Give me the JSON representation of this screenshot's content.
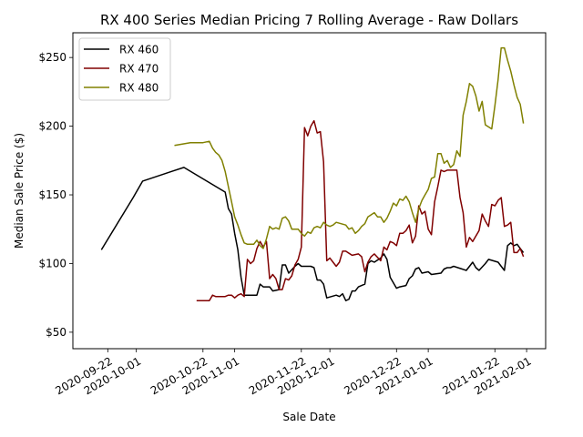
{
  "chart_data": {
    "type": "line",
    "title": "RX 400 Series Median Pricing 7 Rolling Average - Raw Dollars",
    "xlabel": "Sale Date",
    "ylabel": "Median Sale Price ($)",
    "xlim": [
      "2020-09-11",
      "2021-02-07"
    ],
    "ylim": [
      38,
      268
    ],
    "x_ticks": [
      "2020-09-22",
      "2020-10-01",
      "2020-10-22",
      "2020-11-01",
      "2020-11-22",
      "2020-12-01",
      "2020-12-22",
      "2021-01-01",
      "2021-01-22",
      "2021-02-01"
    ],
    "y_ticks": [
      50,
      100,
      150,
      200,
      250
    ],
    "y_tick_labels": [
      "$50",
      "$100",
      "$150",
      "$200",
      "$250"
    ],
    "grid": false,
    "legend": "top-left",
    "series": [
      {
        "name": "RX 460",
        "color": "#000000",
        "points": [
          [
            "2020-09-20",
            110
          ],
          [
            "2020-09-30",
            148
          ],
          [
            "2020-10-03",
            160
          ],
          [
            "2020-10-12",
            167
          ],
          [
            "2020-10-16",
            170
          ],
          [
            "2020-10-29",
            152
          ],
          [
            "2020-10-30",
            140
          ],
          [
            "2020-10-31",
            136
          ],
          [
            "2020-11-01",
            122
          ],
          [
            "2020-11-02",
            110
          ],
          [
            "2020-11-03",
            90
          ],
          [
            "2020-11-04",
            77
          ],
          [
            "2020-11-08",
            77
          ],
          [
            "2020-11-09",
            85
          ],
          [
            "2020-11-10",
            83
          ],
          [
            "2020-11-12",
            83
          ],
          [
            "2020-11-13",
            80
          ],
          [
            "2020-11-15",
            81
          ],
          [
            "2020-11-16",
            99
          ],
          [
            "2020-11-17",
            99
          ],
          [
            "2020-11-18",
            93
          ],
          [
            "2020-11-20",
            98
          ],
          [
            "2020-11-21",
            100
          ],
          [
            "2020-11-22",
            98
          ],
          [
            "2020-11-25",
            98
          ],
          [
            "2020-11-26",
            97
          ],
          [
            "2020-11-27",
            88
          ],
          [
            "2020-11-28",
            88
          ],
          [
            "2020-11-29",
            85
          ],
          [
            "2020-11-30",
            75
          ],
          [
            "2020-12-03",
            77
          ],
          [
            "2020-12-04",
            76
          ],
          [
            "2020-12-05",
            78
          ],
          [
            "2020-12-06",
            73
          ],
          [
            "2020-12-07",
            74
          ],
          [
            "2020-12-08",
            80
          ],
          [
            "2020-12-09",
            80
          ],
          [
            "2020-12-10",
            83
          ],
          [
            "2020-12-12",
            85
          ],
          [
            "2020-12-13",
            100
          ],
          [
            "2020-12-14",
            102
          ],
          [
            "2020-12-15",
            101
          ],
          [
            "2020-12-17",
            104
          ],
          [
            "2020-12-18",
            107
          ],
          [
            "2020-12-19",
            103
          ],
          [
            "2020-12-20",
            90
          ],
          [
            "2020-12-22",
            82
          ],
          [
            "2020-12-23",
            83
          ],
          [
            "2020-12-25",
            84
          ],
          [
            "2020-12-26",
            89
          ],
          [
            "2020-12-27",
            91
          ],
          [
            "2020-12-28",
            96
          ],
          [
            "2020-12-29",
            97
          ],
          [
            "2020-12-30",
            93
          ],
          [
            "2021-01-01",
            94
          ],
          [
            "2021-01-02",
            92
          ],
          [
            "2021-01-05",
            93
          ],
          [
            "2021-01-06",
            96
          ],
          [
            "2021-01-07",
            97
          ],
          [
            "2021-01-08",
            97
          ],
          [
            "2021-01-09",
            98
          ],
          [
            "2021-01-13",
            95
          ],
          [
            "2021-01-15",
            101
          ],
          [
            "2021-01-16",
            97
          ],
          [
            "2021-01-17",
            95
          ],
          [
            "2021-01-19",
            100
          ],
          [
            "2021-01-20",
            103
          ],
          [
            "2021-01-23",
            101
          ],
          [
            "2021-01-24",
            98
          ],
          [
            "2021-01-25",
            95
          ],
          [
            "2021-01-26",
            113
          ],
          [
            "2021-01-27",
            115
          ],
          [
            "2021-01-28",
            113
          ],
          [
            "2021-01-29",
            114
          ],
          [
            "2021-01-30",
            111
          ],
          [
            "2021-01-31",
            108
          ]
        ]
      },
      {
        "name": "RX 470",
        "color": "#800000",
        "points": [
          [
            "2020-10-20",
            73
          ],
          [
            "2020-10-24",
            73
          ],
          [
            "2020-10-25",
            77
          ],
          [
            "2020-10-26",
            76
          ],
          [
            "2020-10-29",
            76
          ],
          [
            "2020-10-30",
            77
          ],
          [
            "2020-10-31",
            77
          ],
          [
            "2020-11-01",
            75
          ],
          [
            "2020-11-02",
            77
          ],
          [
            "2020-11-03",
            78
          ],
          [
            "2020-11-04",
            76
          ],
          [
            "2020-11-05",
            103
          ],
          [
            "2020-11-06",
            100
          ],
          [
            "2020-11-07",
            102
          ],
          [
            "2020-11-08",
            111
          ],
          [
            "2020-11-09",
            116
          ],
          [
            "2020-11-10",
            112
          ],
          [
            "2020-11-11",
            116
          ],
          [
            "2020-11-12",
            89
          ],
          [
            "2020-11-13",
            92
          ],
          [
            "2020-11-14",
            89
          ],
          [
            "2020-11-15",
            81
          ],
          [
            "2020-11-16",
            81
          ],
          [
            "2020-11-17",
            89
          ],
          [
            "2020-11-18",
            88
          ],
          [
            "2020-11-19",
            91
          ],
          [
            "2020-11-20",
            99
          ],
          [
            "2020-11-21",
            103
          ],
          [
            "2020-11-22",
            112
          ],
          [
            "2020-11-23",
            199
          ],
          [
            "2020-11-24",
            193
          ],
          [
            "2020-11-25",
            200
          ],
          [
            "2020-11-26",
            204
          ],
          [
            "2020-11-27",
            195
          ],
          [
            "2020-11-28",
            196
          ],
          [
            "2020-11-29",
            174
          ],
          [
            "2020-11-30",
            102
          ],
          [
            "2020-12-01",
            104
          ],
          [
            "2020-12-02",
            101
          ],
          [
            "2020-12-03",
            98
          ],
          [
            "2020-12-04",
            101
          ],
          [
            "2020-12-05",
            109
          ],
          [
            "2020-12-06",
            109
          ],
          [
            "2020-12-08",
            106
          ],
          [
            "2020-12-10",
            107
          ],
          [
            "2020-12-11",
            105
          ],
          [
            "2020-12-12",
            94
          ],
          [
            "2020-12-13",
            101
          ],
          [
            "2020-12-14",
            105
          ],
          [
            "2020-12-15",
            107
          ],
          [
            "2020-12-17",
            102
          ],
          [
            "2020-12-18",
            112
          ],
          [
            "2020-12-19",
            110
          ],
          [
            "2020-12-20",
            116
          ],
          [
            "2020-12-21",
            115
          ],
          [
            "2020-12-22",
            113
          ],
          [
            "2020-12-23",
            122
          ],
          [
            "2020-12-24",
            122
          ],
          [
            "2020-12-25",
            124
          ],
          [
            "2020-12-26",
            128
          ],
          [
            "2020-12-27",
            115
          ],
          [
            "2020-12-28",
            120
          ],
          [
            "2020-12-29",
            142
          ],
          [
            "2020-12-30",
            136
          ],
          [
            "2020-12-31",
            138
          ],
          [
            "2021-01-01",
            125
          ],
          [
            "2021-01-02",
            121
          ],
          [
            "2021-01-03",
            145
          ],
          [
            "2021-01-04",
            156
          ],
          [
            "2021-01-05",
            168
          ],
          [
            "2021-01-06",
            167
          ],
          [
            "2021-01-07",
            168
          ],
          [
            "2021-01-08",
            168
          ],
          [
            "2021-01-09",
            168
          ],
          [
            "2021-01-10",
            168
          ],
          [
            "2021-01-11",
            148
          ],
          [
            "2021-01-12",
            137
          ],
          [
            "2021-01-13",
            112
          ],
          [
            "2021-01-14",
            119
          ],
          [
            "2021-01-15",
            116
          ],
          [
            "2021-01-16",
            120
          ],
          [
            "2021-01-17",
            124
          ],
          [
            "2021-01-18",
            136
          ],
          [
            "2021-01-19",
            131
          ],
          [
            "2021-01-20",
            127
          ],
          [
            "2021-01-21",
            143
          ],
          [
            "2021-01-22",
            142
          ],
          [
            "2021-01-23",
            146
          ],
          [
            "2021-01-24",
            148
          ],
          [
            "2021-01-25",
            127
          ],
          [
            "2021-01-26",
            128
          ],
          [
            "2021-01-27",
            130
          ],
          [
            "2021-01-28",
            108
          ],
          [
            "2021-01-29",
            108
          ],
          [
            "2021-01-30",
            111
          ],
          [
            "2021-01-31",
            105
          ]
        ]
      },
      {
        "name": "RX 480",
        "color": "#808000",
        "points": [
          [
            "2020-10-13",
            186
          ],
          [
            "2020-10-18",
            188
          ],
          [
            "2020-10-22",
            188
          ],
          [
            "2020-10-24",
            189
          ],
          [
            "2020-10-25",
            184
          ],
          [
            "2020-10-26",
            181
          ],
          [
            "2020-10-27",
            179
          ],
          [
            "2020-10-28",
            175
          ],
          [
            "2020-10-29",
            167
          ],
          [
            "2020-10-30",
            156
          ],
          [
            "2020-10-31",
            145
          ],
          [
            "2020-11-01",
            134
          ],
          [
            "2020-11-02",
            128
          ],
          [
            "2020-11-03",
            121
          ],
          [
            "2020-11-04",
            115
          ],
          [
            "2020-11-05",
            114
          ],
          [
            "2020-11-07",
            114
          ],
          [
            "2020-11-08",
            117
          ],
          [
            "2020-11-09",
            113
          ],
          [
            "2020-11-10",
            111
          ],
          [
            "2020-11-11",
            118
          ],
          [
            "2020-11-12",
            127
          ],
          [
            "2020-11-13",
            125
          ],
          [
            "2020-11-14",
            126
          ],
          [
            "2020-11-15",
            125
          ],
          [
            "2020-11-16",
            133
          ],
          [
            "2020-11-17",
            134
          ],
          [
            "2020-11-18",
            131
          ],
          [
            "2020-11-19",
            125
          ],
          [
            "2020-11-21",
            125
          ],
          [
            "2020-11-22",
            122
          ],
          [
            "2020-11-23",
            120
          ],
          [
            "2020-11-24",
            123
          ],
          [
            "2020-11-25",
            122
          ],
          [
            "2020-11-26",
            126
          ],
          [
            "2020-11-27",
            127
          ],
          [
            "2020-11-28",
            126
          ],
          [
            "2020-11-29",
            130
          ],
          [
            "2020-11-30",
            128
          ],
          [
            "2020-12-01",
            127
          ],
          [
            "2020-12-02",
            128
          ],
          [
            "2020-12-03",
            130
          ],
          [
            "2020-12-06",
            128
          ],
          [
            "2020-12-07",
            125
          ],
          [
            "2020-12-08",
            126
          ],
          [
            "2020-12-09",
            122
          ],
          [
            "2020-12-10",
            124
          ],
          [
            "2020-12-11",
            127
          ],
          [
            "2020-12-12",
            129
          ],
          [
            "2020-12-13",
            134
          ],
          [
            "2020-12-15",
            137
          ],
          [
            "2020-12-16",
            134
          ],
          [
            "2020-12-17",
            134
          ],
          [
            "2020-12-18",
            130
          ],
          [
            "2020-12-19",
            133
          ],
          [
            "2020-12-20",
            138
          ],
          [
            "2020-12-21",
            144
          ],
          [
            "2020-12-22",
            142
          ],
          [
            "2020-12-23",
            147
          ],
          [
            "2020-12-24",
            146
          ],
          [
            "2020-12-25",
            149
          ],
          [
            "2020-12-26",
            145
          ],
          [
            "2020-12-27",
            137
          ],
          [
            "2020-12-28",
            130
          ],
          [
            "2020-12-29",
            140
          ],
          [
            "2020-12-30",
            146
          ],
          [
            "2020-12-31",
            150
          ],
          [
            "2021-01-01",
            154
          ],
          [
            "2021-01-02",
            162
          ],
          [
            "2021-01-03",
            163
          ],
          [
            "2021-01-04",
            180
          ],
          [
            "2021-01-05",
            180
          ],
          [
            "2021-01-06",
            173
          ],
          [
            "2021-01-07",
            175
          ],
          [
            "2021-01-08",
            170
          ],
          [
            "2021-01-09",
            172
          ],
          [
            "2021-01-10",
            182
          ],
          [
            "2021-01-11",
            178
          ],
          [
            "2021-01-12",
            208
          ],
          [
            "2021-01-13",
            218
          ],
          [
            "2021-01-14",
            231
          ],
          [
            "2021-01-15",
            229
          ],
          [
            "2021-01-16",
            222
          ],
          [
            "2021-01-17",
            211
          ],
          [
            "2021-01-18",
            218
          ],
          [
            "2021-01-19",
            201
          ],
          [
            "2021-01-21",
            198
          ],
          [
            "2021-01-22",
            215
          ],
          [
            "2021-01-23",
            234
          ],
          [
            "2021-01-24",
            257
          ],
          [
            "2021-01-25",
            257
          ],
          [
            "2021-01-26",
            248
          ],
          [
            "2021-01-27",
            240
          ],
          [
            "2021-01-28",
            230
          ],
          [
            "2021-01-29",
            221
          ],
          [
            "2021-01-30",
            216
          ],
          [
            "2021-01-31",
            202
          ]
        ]
      }
    ]
  }
}
